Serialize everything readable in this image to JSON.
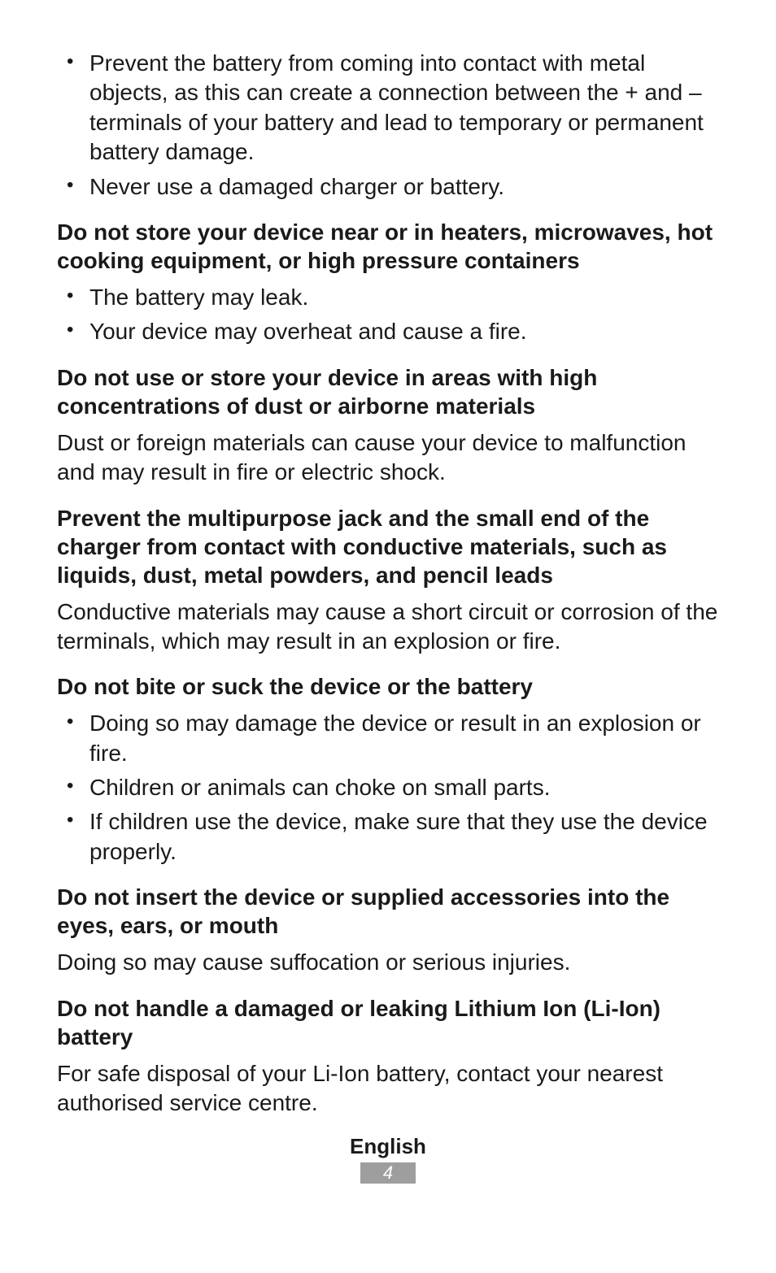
{
  "bullets_top": [
    "Prevent the battery from coming into contact with metal objects, as this can create a connection between the + and – terminals of your battery and lead to temporary or permanent battery damage.",
    "Never use a damaged charger or battery."
  ],
  "sec1": {
    "heading": "Do not store your device near or in heaters, microwaves, hot cooking equipment, or high pressure containers",
    "bullets": [
      "The battery may leak.",
      "Your device may overheat and cause a fire."
    ]
  },
  "sec2": {
    "heading": "Do not use or store your device in areas with high concentrations of dust or airborne materials",
    "body": "Dust or foreign materials can cause your device to malfunction and may result in fire or electric shock."
  },
  "sec3": {
    "heading": "Prevent the multipurpose jack and the small end of the charger from contact with conductive materials, such as liquids, dust, metal powders, and pencil leads",
    "body": "Conductive materials may cause a short circuit or corrosion of the terminals, which may result in an explosion or fire."
  },
  "sec4": {
    "heading": "Do not bite or suck the device or the battery",
    "bullets": [
      "Doing so may damage the device or result in an explosion or fire.",
      "Children or animals can choke on small parts.",
      "If children use the device, make sure that they use the device properly."
    ]
  },
  "sec5": {
    "heading": "Do not insert the device or supplied accessories into the eyes, ears, or mouth",
    "body": "Doing so may cause suffocation or serious injuries."
  },
  "sec6": {
    "heading": "Do not handle a damaged or leaking Lithium Ion (Li-Ion) battery",
    "body": "For safe disposal of your Li-Ion battery, contact your nearest authorised service centre."
  },
  "footer": {
    "lang": "English",
    "page": "4"
  }
}
